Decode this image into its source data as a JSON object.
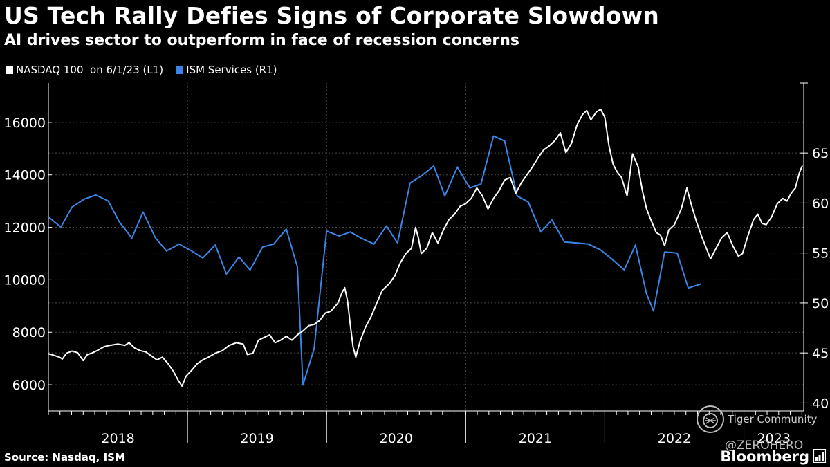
{
  "chart_data": {
    "type": "line",
    "title": "US Tech Rally Defies Signs of Corporate Slowdown",
    "subtitle": "AI drives sector to outperform in face of recession concerns",
    "legend": [
      {
        "label": "NASDAQ 100  on 6/1/23 (L1)",
        "color": "#ffffff"
      },
      {
        "label": "ISM Services (R1)",
        "color": "#3a86e8"
      }
    ],
    "x_start": 2018.0,
    "x_end": 2023.43,
    "x_tick_labels": [
      {
        "label": "2018",
        "start": 2018.0,
        "end": 2019.0
      },
      {
        "label": "2019",
        "start": 2019.0,
        "end": 2020.0
      },
      {
        "label": "2020",
        "start": 2020.0,
        "end": 2021.0
      },
      {
        "label": "2021",
        "start": 2021.0,
        "end": 2022.0
      },
      {
        "label": "2022",
        "start": 2022.0,
        "end": 2023.0
      },
      {
        "label": "2023",
        "start": 2023.0,
        "end": 2023.43
      }
    ],
    "left_axis": {
      "range": [
        5000,
        17500
      ],
      "ticks": [
        6000,
        8000,
        10000,
        12000,
        14000,
        16000
      ]
    },
    "right_axis": {
      "range": [
        39.2,
        72
      ],
      "ticks": [
        40,
        45,
        50,
        55,
        60,
        65
      ]
    },
    "series": [
      {
        "name": "NASDAQ 100",
        "axis": "left",
        "color": "#ffffff",
        "points": [
          [
            2018.0,
            7180
          ],
          [
            2018.04,
            7120
          ],
          [
            2018.08,
            7050
          ],
          [
            2018.1,
            6980
          ],
          [
            2018.13,
            7200
          ],
          [
            2018.17,
            7280
          ],
          [
            2018.21,
            7220
          ],
          [
            2018.25,
            6920
          ],
          [
            2018.28,
            7150
          ],
          [
            2018.31,
            7200
          ],
          [
            2018.35,
            7300
          ],
          [
            2018.4,
            7450
          ],
          [
            2018.44,
            7500
          ],
          [
            2018.5,
            7550
          ],
          [
            2018.55,
            7500
          ],
          [
            2018.58,
            7600
          ],
          [
            2018.62,
            7400
          ],
          [
            2018.66,
            7300
          ],
          [
            2018.7,
            7250
          ],
          [
            2018.74,
            7100
          ],
          [
            2018.78,
            6950
          ],
          [
            2018.82,
            7050
          ],
          [
            2018.86,
            6800
          ],
          [
            2018.9,
            6500
          ],
          [
            2018.93,
            6200
          ],
          [
            2018.96,
            5950
          ],
          [
            2018.99,
            6330
          ],
          [
            2019.03,
            6550
          ],
          [
            2019.07,
            6800
          ],
          [
            2019.11,
            6950
          ],
          [
            2019.15,
            7050
          ],
          [
            2019.2,
            7200
          ],
          [
            2019.25,
            7300
          ],
          [
            2019.3,
            7500
          ],
          [
            2019.35,
            7600
          ],
          [
            2019.4,
            7550
          ],
          [
            2019.43,
            7150
          ],
          [
            2019.47,
            7200
          ],
          [
            2019.51,
            7700
          ],
          [
            2019.55,
            7800
          ],
          [
            2019.59,
            7900
          ],
          [
            2019.63,
            7600
          ],
          [
            2019.67,
            7700
          ],
          [
            2019.71,
            7850
          ],
          [
            2019.75,
            7700
          ],
          [
            2019.79,
            7900
          ],
          [
            2019.83,
            8050
          ],
          [
            2019.87,
            8250
          ],
          [
            2019.91,
            8300
          ],
          [
            2019.95,
            8450
          ],
          [
            2019.99,
            8730
          ],
          [
            2020.03,
            8800
          ],
          [
            2020.08,
            9100
          ],
          [
            2020.11,
            9500
          ],
          [
            2020.13,
            9700
          ],
          [
            2020.15,
            9200
          ],
          [
            2020.17,
            8300
          ],
          [
            2020.19,
            7450
          ],
          [
            2020.21,
            7050
          ],
          [
            2020.24,
            7650
          ],
          [
            2020.28,
            8200
          ],
          [
            2020.32,
            8600
          ],
          [
            2020.36,
            9100
          ],
          [
            2020.4,
            9600
          ],
          [
            2020.45,
            9850
          ],
          [
            2020.49,
            10150
          ],
          [
            2020.53,
            10650
          ],
          [
            2020.57,
            11000
          ],
          [
            2020.61,
            11200
          ],
          [
            2020.64,
            12000
          ],
          [
            2020.66,
            11600
          ],
          [
            2020.68,
            11000
          ],
          [
            2020.72,
            11200
          ],
          [
            2020.76,
            11800
          ],
          [
            2020.8,
            11400
          ],
          [
            2020.84,
            11900
          ],
          [
            2020.88,
            12300
          ],
          [
            2020.92,
            12500
          ],
          [
            2020.96,
            12800
          ],
          [
            2021.0,
            12900
          ],
          [
            2021.04,
            13100
          ],
          [
            2021.08,
            13500
          ],
          [
            2021.12,
            13200
          ],
          [
            2021.16,
            12700
          ],
          [
            2021.2,
            13100
          ],
          [
            2021.24,
            13400
          ],
          [
            2021.28,
            13800
          ],
          [
            2021.32,
            13900
          ],
          [
            2021.36,
            13300
          ],
          [
            2021.4,
            13700
          ],
          [
            2021.44,
            14000
          ],
          [
            2021.48,
            14300
          ],
          [
            2021.52,
            14650
          ],
          [
            2021.56,
            14950
          ],
          [
            2021.6,
            15100
          ],
          [
            2021.64,
            15300
          ],
          [
            2021.68,
            15600
          ],
          [
            2021.72,
            14850
          ],
          [
            2021.76,
            15200
          ],
          [
            2021.8,
            15900
          ],
          [
            2021.84,
            16300
          ],
          [
            2021.87,
            16450
          ],
          [
            2021.9,
            16100
          ],
          [
            2021.94,
            16400
          ],
          [
            2021.97,
            16500
          ],
          [
            2022.0,
            16200
          ],
          [
            2022.03,
            15100
          ],
          [
            2022.06,
            14400
          ],
          [
            2022.09,
            14100
          ],
          [
            2022.12,
            13900
          ],
          [
            2022.16,
            13200
          ],
          [
            2022.2,
            14800
          ],
          [
            2022.24,
            14300
          ],
          [
            2022.27,
            13400
          ],
          [
            2022.3,
            12700
          ],
          [
            2022.33,
            12300
          ],
          [
            2022.37,
            11800
          ],
          [
            2022.4,
            11700
          ],
          [
            2022.43,
            11300
          ],
          [
            2022.46,
            11900
          ],
          [
            2022.5,
            12100
          ],
          [
            2022.55,
            12700
          ],
          [
            2022.59,
            13500
          ],
          [
            2022.62,
            12900
          ],
          [
            2022.66,
            12200
          ],
          [
            2022.7,
            11600
          ],
          [
            2022.73,
            11200
          ],
          [
            2022.76,
            10800
          ],
          [
            2022.8,
            11200
          ],
          [
            2022.84,
            11600
          ],
          [
            2022.88,
            11800
          ],
          [
            2022.92,
            11300
          ],
          [
            2022.96,
            10900
          ],
          [
            2022.99,
            11000
          ],
          [
            2023.03,
            11700
          ],
          [
            2023.07,
            12300
          ],
          [
            2023.1,
            12500
          ],
          [
            2023.13,
            12150
          ],
          [
            2023.16,
            12100
          ],
          [
            2023.2,
            12400
          ],
          [
            2023.24,
            12900
          ],
          [
            2023.28,
            13100
          ],
          [
            2023.31,
            13000
          ],
          [
            2023.34,
            13300
          ],
          [
            2023.37,
            13500
          ],
          [
            2023.4,
            14100
          ],
          [
            2023.42,
            14350
          ]
        ]
      },
      {
        "name": "ISM Services",
        "axis": "right",
        "color": "#3a86e8",
        "points": [
          [
            2018.0,
            58.6
          ],
          [
            2018.09,
            57.6
          ],
          [
            2018.17,
            59.6
          ],
          [
            2018.26,
            60.4
          ],
          [
            2018.34,
            60.8
          ],
          [
            2018.43,
            60.2
          ],
          [
            2018.51,
            58.1
          ],
          [
            2018.6,
            56.5
          ],
          [
            2018.68,
            59.1
          ],
          [
            2018.77,
            56.5
          ],
          [
            2018.85,
            55.2
          ],
          [
            2018.94,
            55.9
          ],
          [
            2019.03,
            55.2
          ],
          [
            2019.11,
            54.5
          ],
          [
            2019.2,
            55.8
          ],
          [
            2019.28,
            52.9
          ],
          [
            2019.37,
            54.6
          ],
          [
            2019.45,
            53.3
          ],
          [
            2019.54,
            55.6
          ],
          [
            2019.62,
            55.9
          ],
          [
            2019.71,
            57.4
          ],
          [
            2019.79,
            53.6
          ],
          [
            2019.83,
            41.8
          ],
          [
            2019.91,
            45.4
          ],
          [
            2020.0,
            57.2
          ],
          [
            2020.09,
            56.7
          ],
          [
            2020.17,
            57.1
          ],
          [
            2020.26,
            56.4
          ],
          [
            2020.34,
            55.9
          ],
          [
            2020.43,
            57.7
          ],
          [
            2020.51,
            56.0
          ],
          [
            2020.6,
            62.0
          ],
          [
            2020.68,
            62.7
          ],
          [
            2020.77,
            63.7
          ],
          [
            2020.85,
            60.7
          ],
          [
            2020.94,
            63.6
          ],
          [
            2021.03,
            61.5
          ],
          [
            2021.11,
            61.9
          ],
          [
            2021.2,
            66.7
          ],
          [
            2021.28,
            66.2
          ],
          [
            2021.37,
            60.7
          ],
          [
            2021.45,
            60.1
          ],
          [
            2021.54,
            57.1
          ],
          [
            2021.62,
            58.3
          ],
          [
            2021.71,
            56.1
          ],
          [
            2021.8,
            56.0
          ],
          [
            2021.88,
            55.9
          ],
          [
            2021.97,
            55.3
          ],
          [
            2022.05,
            54.4
          ],
          [
            2022.14,
            53.3
          ],
          [
            2022.22,
            55.8
          ],
          [
            2022.3,
            50.9
          ],
          [
            2022.35,
            49.2
          ],
          [
            2022.43,
            55.1
          ],
          [
            2022.52,
            55.0
          ],
          [
            2022.6,
            51.5
          ],
          [
            2022.69,
            51.9
          ]
        ]
      }
    ]
  },
  "footer": {
    "source": "Source: Nasdaq, ISM",
    "brand": "Bloomberg"
  },
  "watermark": {
    "community": "Tiger Community",
    "hero": "@ZEROHERO"
  }
}
